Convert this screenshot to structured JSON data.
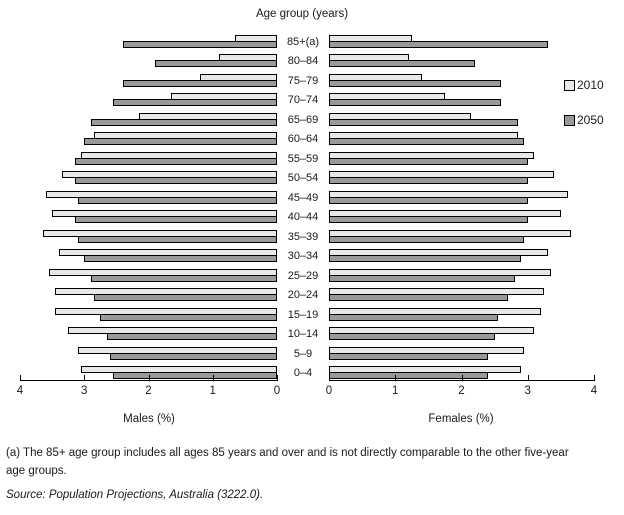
{
  "chart_data": {
    "type": "bar",
    "subtype": "population-pyramid",
    "title": "Age group (years)",
    "legend": [
      "2010",
      "2050"
    ],
    "colors": {
      "2010": "#e8e8e8",
      "2050": "#999999",
      "border": "#000000"
    },
    "age_groups": [
      "85+(a)",
      "80–84",
      "75–79",
      "70–74",
      "65–69",
      "60–64",
      "55–59",
      "50–54",
      "45–49",
      "40–44",
      "35–39",
      "30–34",
      "25–29",
      "20–24",
      "15–19",
      "10–14",
      "5–9",
      "0–4"
    ],
    "xlim": [
      0,
      4
    ],
    "males": {
      "axis_label": "Males (%)",
      "ticks": [
        "4",
        "3",
        "2",
        "1",
        "0"
      ],
      "series": [
        {
          "name": "2010",
          "values": [
            0.65,
            0.9,
            1.2,
            1.65,
            2.15,
            2.85,
            3.05,
            3.35,
            3.6,
            3.5,
            3.65,
            3.4,
            3.55,
            3.45,
            3.45,
            3.25,
            3.1,
            3.05
          ]
        },
        {
          "name": "2050",
          "values": [
            2.4,
            1.9,
            2.4,
            2.55,
            2.9,
            3.0,
            3.15,
            3.15,
            3.1,
            3.15,
            3.1,
            3.0,
            2.9,
            2.85,
            2.75,
            2.65,
            2.6,
            2.55
          ]
        }
      ]
    },
    "females": {
      "axis_label": "Females (%)",
      "ticks": [
        "0",
        "1",
        "2",
        "3",
        "4"
      ],
      "series": [
        {
          "name": "2010",
          "values": [
            1.25,
            1.2,
            1.4,
            1.75,
            2.15,
            2.85,
            3.1,
            3.4,
            3.6,
            3.5,
            3.65,
            3.3,
            3.35,
            3.25,
            3.2,
            3.1,
            2.95,
            2.9
          ]
        },
        {
          "name": "2050",
          "values": [
            3.3,
            2.2,
            2.6,
            2.6,
            2.85,
            2.95,
            3.0,
            3.0,
            3.0,
            3.0,
            2.95,
            2.9,
            2.8,
            2.7,
            2.55,
            2.5,
            2.4,
            2.4
          ]
        }
      ]
    }
  },
  "footnote": "(a) The 85+ age group includes all ages 85 years and over and is not directly comparable to the other five-year age groups.",
  "source": "Source: Population Projections, Australia (3222.0)."
}
